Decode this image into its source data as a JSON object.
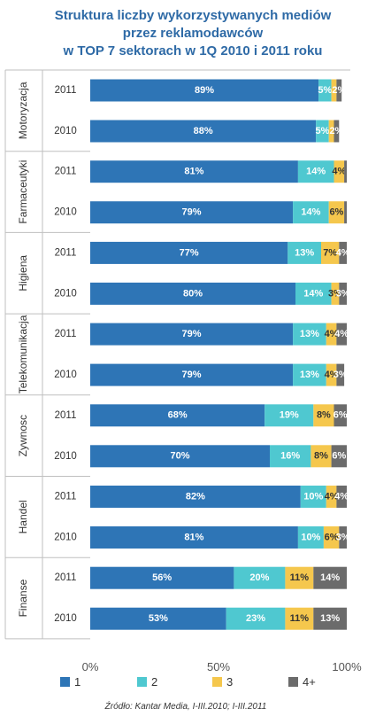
{
  "chart_data": {
    "type": "bar",
    "orientation": "horizontal",
    "stacked": true,
    "title": [
      "Struktura liczby wykorzystywanych mediów",
      "przez reklamodawców",
      "w TOP 7 sektorach w 1Q 2010 i 2011 roku"
    ],
    "sectors": [
      {
        "name": "Motoryzacja",
        "rows": [
          {
            "year": "2011",
            "values": [
              89,
              5,
              2,
              2
            ],
            "labels": [
              "89%",
              "5%",
              "",
              "2%"
            ]
          },
          {
            "year": "2010",
            "values": [
              88,
              5,
              2,
              2
            ],
            "labels": [
              "88%",
              "5%",
              "",
              "2%"
            ]
          }
        ]
      },
      {
        "name": "Farmaceutyki",
        "rows": [
          {
            "year": "2011",
            "values": [
              81,
              14,
              4,
              1
            ],
            "labels": [
              "81%",
              "14%",
              "4%",
              ""
            ]
          },
          {
            "year": "2010",
            "values": [
              79,
              14,
              6,
              1
            ],
            "labels": [
              "79%",
              "14%",
              "6%",
              ""
            ]
          }
        ]
      },
      {
        "name": "Higiena",
        "rows": [
          {
            "year": "2011",
            "values": [
              77,
              13,
              7,
              4
            ],
            "labels": [
              "77%",
              "13%",
              "7%",
              "4%"
            ]
          },
          {
            "year": "2010",
            "values": [
              80,
              14,
              3,
              3
            ],
            "labels": [
              "80%",
              "14%",
              "3%",
              "3%"
            ]
          }
        ]
      },
      {
        "name": "Telekomunikacja",
        "rows": [
          {
            "year": "2011",
            "values": [
              79,
              13,
              4,
              4
            ],
            "labels": [
              "79%",
              "13%",
              "4%",
              "4%"
            ]
          },
          {
            "year": "2010",
            "values": [
              79,
              13,
              4,
              3
            ],
            "labels": [
              "79%",
              "13%",
              "4%",
              "3%"
            ]
          }
        ]
      },
      {
        "name": "Zywnosc",
        "rows": [
          {
            "year": "2011",
            "values": [
              68,
              19,
              8,
              6
            ],
            "labels": [
              "68%",
              "19%",
              "8%",
              "6%"
            ]
          },
          {
            "year": "2010",
            "values": [
              70,
              16,
              8,
              6
            ],
            "labels": [
              "70%",
              "16%",
              "8%",
              "6%"
            ]
          }
        ]
      },
      {
        "name": "Handel",
        "rows": [
          {
            "year": "2011",
            "values": [
              82,
              10,
              4,
              4
            ],
            "labels": [
              "82%",
              "10%",
              "4%",
              "4%"
            ]
          },
          {
            "year": "2010",
            "values": [
              81,
              10,
              6,
              3
            ],
            "labels": [
              "81%",
              "10%",
              "6%",
              "3%"
            ]
          }
        ]
      },
      {
        "name": "Finanse",
        "rows": [
          {
            "year": "2011",
            "values": [
              56,
              20,
              11,
              14
            ],
            "labels": [
              "56%",
              "20%",
              "11%",
              "14%"
            ]
          },
          {
            "year": "2010",
            "values": [
              53,
              23,
              11,
              13
            ],
            "labels": [
              "53%",
              "23%",
              "11%",
              "13%"
            ]
          }
        ]
      }
    ],
    "series": [
      {
        "name": "1",
        "color": "#2e75b6",
        "label_color": "#ffffff"
      },
      {
        "name": "2",
        "color": "#4fc8d0",
        "label_color": "#ffffff"
      },
      {
        "name": "3",
        "color": "#f5c74d",
        "label_color": "#333333"
      },
      {
        "name": "4+",
        "color": "#6b6b6b",
        "label_color": "#ffffff"
      }
    ],
    "xticks": [
      "0%",
      "50%",
      "100%"
    ],
    "xlim": [
      0,
      100
    ],
    "grid": false,
    "legend": "bottom",
    "source": "Źródło: Kantar Media, I-III.2010; I-III.2011"
  }
}
